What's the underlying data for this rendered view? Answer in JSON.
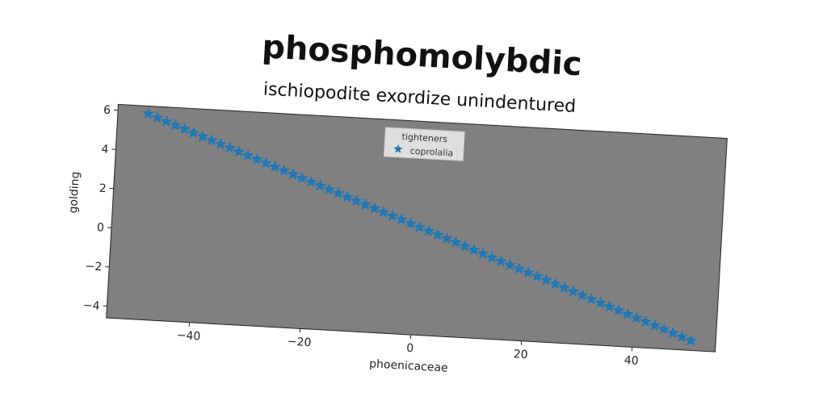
{
  "chart_data": {
    "type": "scatter",
    "title": "phosphomolybdic",
    "subtitle": "ischiopodite exordize unindentured",
    "xlabel": "phoenicaceae",
    "ylabel": "golding",
    "xlim": [
      -55,
      55
    ],
    "ylim": [
      -4.6,
      6.3
    ],
    "x_ticks": [
      "−40",
      "−20",
      "0",
      "20",
      "40"
    ],
    "x_tick_values": [
      -40,
      -20,
      0,
      20,
      40
    ],
    "y_ticks": [
      "−4",
      "−2",
      "0",
      "2",
      "4",
      "6"
    ],
    "y_tick_values": [
      -4,
      -2,
      0,
      2,
      4,
      6
    ],
    "legend": {
      "title": "tighteners",
      "placement": "upper-center"
    },
    "grid": false,
    "marker": "star",
    "series": [
      {
        "name": "coprolalia",
        "color": "#1f77b4",
        "x_start": -49.5,
        "x_end": 50.5,
        "count": 61,
        "y_start": 5.9,
        "y_end": -4.1
      }
    ],
    "plot_background": "#808080"
  }
}
